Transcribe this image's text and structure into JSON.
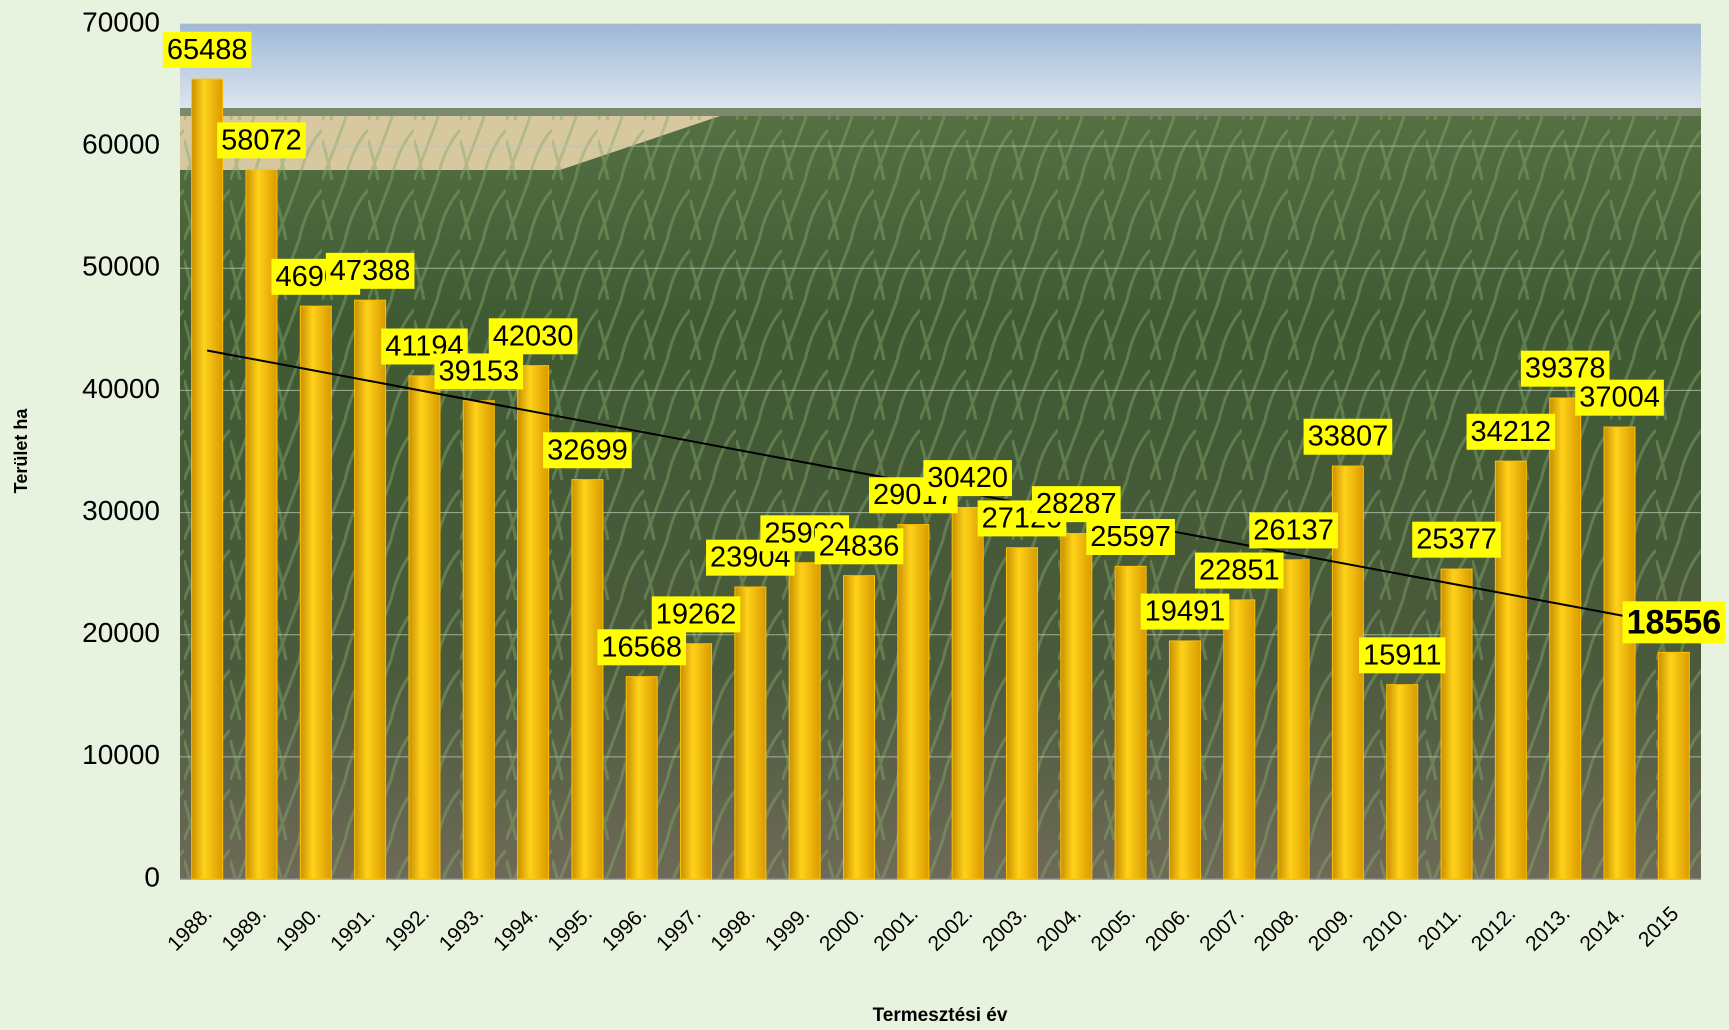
{
  "chart_data": {
    "type": "bar",
    "categories": [
      "1988.",
      "1989.",
      "1990.",
      "1991.",
      "1992.",
      "1993.",
      "1994.",
      "1995.",
      "1996.",
      "1997.",
      "1998.",
      "1999.",
      "2000.",
      "2001.",
      "2002.",
      "2003.",
      "2004.",
      "2005.",
      "2006.",
      "2007.",
      "2008.",
      "2009.",
      "2010.",
      "2011.",
      "2012.",
      "2013.",
      "2014.",
      "2015"
    ],
    "values": [
      65488,
      58072,
      46900,
      47388,
      41194,
      39153,
      42030,
      32699,
      16568,
      19262,
      23904,
      25900,
      24836,
      29017,
      30420,
      27120,
      28287,
      25597,
      19491,
      22851,
      26137,
      33807,
      15911,
      25377,
      34212,
      39378,
      37004,
      18556
    ],
    "color": "#ffc000",
    "ylim": [
      0,
      70000
    ],
    "yticks": [
      0,
      10000,
      20000,
      30000,
      40000,
      50000,
      60000,
      70000
    ],
    "y_label": "Terület ha",
    "x_label": "Termesztési év",
    "grid": true,
    "trendline": true
  }
}
